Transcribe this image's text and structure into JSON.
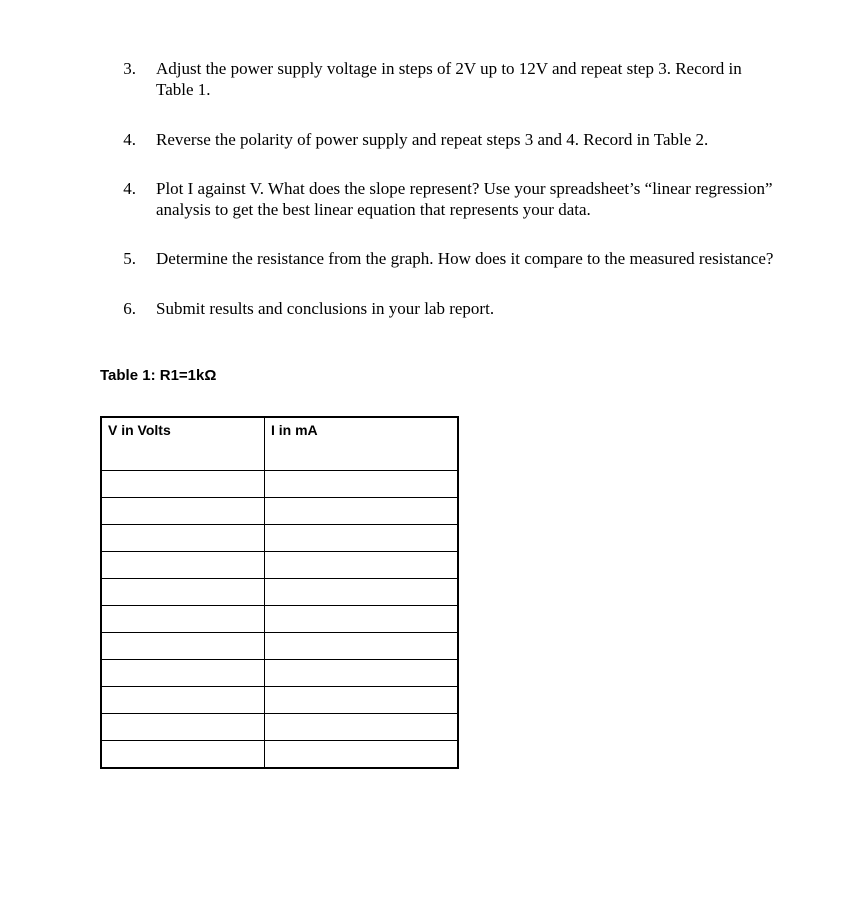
{
  "list": {
    "items": [
      {
        "number": "3.",
        "text": "Adjust the power supply voltage in steps of 2V up to 12V and repeat step 3. Record in Table 1."
      },
      {
        "number": "4.",
        "text": "Reverse the polarity of power supply and repeat steps 3 and 4. Record in Table 2."
      },
      {
        "number": "4.",
        "text": "Plot I against V. What does the slope represent?  Use your spreadsheet’s “linear regression” analysis to get the best linear equation that represents your data."
      },
      {
        "number": "5.",
        "text": "Determine the resistance from the graph.  How does it compare to the measured resistance?"
      },
      {
        "number": "6.",
        "text": "Submit results and conclusions in your lab report."
      }
    ]
  },
  "table": {
    "caption": "Table 1:  R1=1kΩ",
    "columns": [
      "V in Volts",
      "I in mA"
    ],
    "num_data_rows": 11
  }
}
